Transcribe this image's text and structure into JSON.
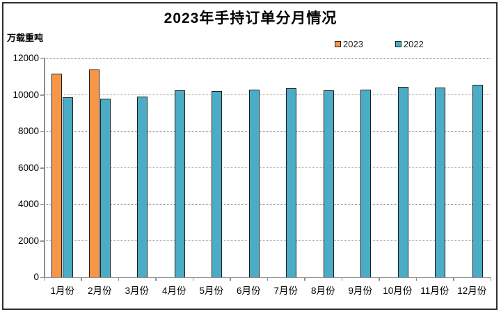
{
  "chart_data": {
    "type": "bar",
    "title": "2023年手持订单分月情况",
    "unit_label": "万载重吨",
    "categories": [
      "1月份",
      "2月份",
      "3月份",
      "4月份",
      "5月份",
      "6月份",
      "7月份",
      "8月份",
      "9月份",
      "10月份",
      "11月份",
      "12月份"
    ],
    "series": [
      {
        "name": "2023",
        "color": "#F79646",
        "values": [
          11150,
          11400,
          null,
          null,
          null,
          null,
          null,
          null,
          null,
          null,
          null,
          null
        ]
      },
      {
        "name": "2022",
        "color": "#4BACC6",
        "values": [
          9850,
          9800,
          9900,
          10250,
          10200,
          10300,
          10350,
          10250,
          10300,
          10450,
          10400,
          10550
        ]
      }
    ],
    "ylim": [
      0,
      12000
    ],
    "yticks": [
      0,
      2000,
      4000,
      6000,
      8000,
      10000,
      12000
    ],
    "grid": "horizontal-dotted",
    "legend_position": "top-right",
    "xlabel": "",
    "ylabel": ""
  }
}
